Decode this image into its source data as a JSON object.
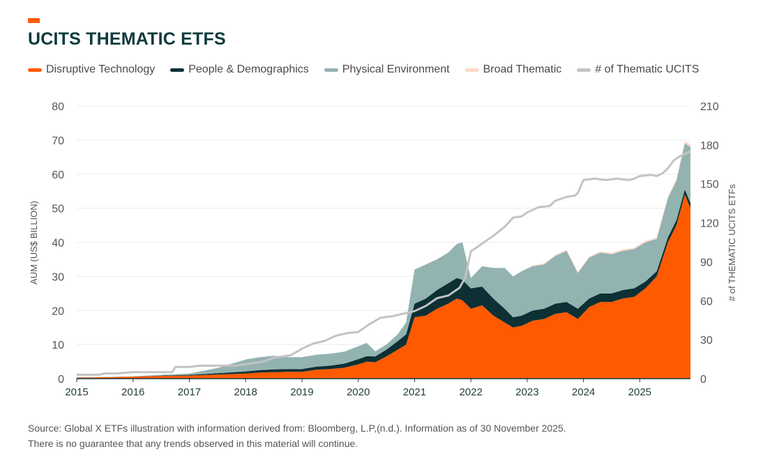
{
  "header": {
    "title": "UCITS THEMATIC ETFS"
  },
  "legend": [
    {
      "label": "Disruptive Technology",
      "color": "#ff5a00"
    },
    {
      "label": "People & Demographics",
      "color": "#0d3035"
    },
    {
      "label": "Physical Environment",
      "color": "#93b3b1"
    },
    {
      "label": "Broad Thematic",
      "color": "#fdd9c6"
    },
    {
      "label": "# of Thematic UCITS",
      "color": "#c3c3c3"
    }
  ],
  "footer": {
    "source": "Source: Global X ETFs illustration with information derived from: Bloomberg, L.P,(n.d.). Information as of 30 November 2025.",
    "disclaimer": "There is no guarantee that any trends observed in this material will continue."
  },
  "chart_data": {
    "type": "area",
    "title": "UCITS THEMATIC ETFS",
    "ylabel": "AUM (US$ BILLION)",
    "y2label": "# of THEMATIC UCITS ETFs",
    "ylim": [
      0,
      80
    ],
    "y2lim": [
      0,
      210
    ],
    "yticks": [
      0,
      10,
      20,
      30,
      40,
      50,
      60,
      70,
      80
    ],
    "y2ticks": [
      0,
      30,
      60,
      90,
      120,
      150,
      180,
      210
    ],
    "xlim": [
      2015,
      2025.9
    ],
    "xticks": [
      "2015",
      "2016",
      "2017",
      "2018",
      "2019",
      "2020",
      "2021",
      "2022",
      "2023",
      "2024",
      "2025"
    ],
    "grid": "horizontal",
    "legend_position": "top",
    "stacked": true,
    "x": [
      2015.0,
      2015.5,
      2016.0,
      2016.5,
      2017.0,
      2017.5,
      2018.0,
      2018.25,
      2018.5,
      2018.75,
      2019.0,
      2019.25,
      2019.5,
      2019.75,
      2020.0,
      2020.15,
      2020.3,
      2020.5,
      2020.7,
      2020.85,
      2021.0,
      2021.2,
      2021.4,
      2021.6,
      2021.75,
      2021.85,
      2022.0,
      2022.2,
      2022.4,
      2022.6,
      2022.75,
      2022.9,
      2023.1,
      2023.3,
      2023.5,
      2023.7,
      2023.9,
      2024.1,
      2024.3,
      2024.5,
      2024.7,
      2024.9,
      2025.1,
      2025.3,
      2025.5,
      2025.65,
      2025.8,
      2025.9
    ],
    "series": [
      {
        "name": "Disruptive Technology",
        "color": "#ff5a00",
        "values": [
          0.3,
          0.4,
          0.6,
          0.8,
          0.9,
          1.2,
          1.5,
          1.8,
          1.9,
          2.0,
          2.0,
          2.6,
          2.8,
          3.2,
          4.2,
          5.0,
          4.8,
          6.5,
          8.5,
          10.0,
          18.0,
          18.5,
          20.5,
          22.0,
          23.5,
          23.0,
          20.5,
          21.5,
          18.5,
          16.5,
          15.0,
          15.5,
          17.0,
          17.5,
          19.0,
          19.5,
          17.5,
          21.0,
          22.5,
          22.5,
          23.5,
          24.0,
          26.5,
          30.0,
          40.0,
          45.0,
          54.0,
          50.0
        ]
      },
      {
        "name": "People & Demographics",
        "color": "#0d3035",
        "values": [
          0.0,
          0.0,
          0.0,
          0.1,
          0.2,
          0.4,
          0.6,
          0.7,
          0.8,
          0.8,
          0.8,
          0.9,
          1.0,
          1.2,
          1.5,
          1.6,
          1.7,
          2.0,
          2.5,
          3.0,
          4.0,
          5.0,
          5.5,
          6.0,
          6.0,
          6.0,
          6.0,
          5.5,
          5.0,
          4.0,
          3.0,
          3.0,
          3.0,
          3.0,
          3.0,
          3.0,
          3.0,
          2.5,
          2.5,
          2.5,
          2.5,
          2.5,
          2.0,
          1.5,
          1.5,
          1.5,
          1.5,
          1.5
        ]
      },
      {
        "name": "Physical Environment",
        "color": "#93b3b1",
        "values": [
          0.1,
          0.1,
          0.1,
          0.2,
          0.4,
          1.5,
          3.5,
          3.8,
          4.0,
          3.5,
          3.5,
          3.5,
          3.5,
          3.5,
          3.8,
          3.9,
          1.5,
          1.5,
          2.0,
          3.5,
          10.0,
          10.0,
          9.0,
          9.0,
          10.0,
          11.0,
          3.0,
          6.0,
          9.0,
          12.0,
          12.0,
          13.0,
          13.0,
          13.0,
          14.0,
          15.0,
          10.5,
          12.0,
          12.0,
          11.5,
          11.5,
          11.5,
          11.5,
          9.5,
          11.5,
          11.5,
          13.5,
          16.5
        ]
      },
      {
        "name": "Broad Thematic",
        "color": "#fdd9c6",
        "values": [
          0,
          0,
          0,
          0,
          0,
          0,
          0,
          0,
          0,
          0,
          0,
          0,
          0,
          0,
          0,
          0,
          0,
          0,
          0,
          0,
          0,
          0,
          0,
          0,
          0,
          0,
          0,
          0,
          0,
          0,
          0,
          0,
          0.3,
          0.3,
          0.3,
          0.3,
          0.3,
          0.3,
          0.3,
          0.4,
          0.4,
          0.4,
          0.4,
          0.4,
          0.5,
          0.6,
          0.7,
          0.7
        ]
      }
    ],
    "count_series": {
      "name": "# of Thematic UCITS",
      "color": "#c3c3c3",
      "axis": "right",
      "x": [
        2015.0,
        2015.4,
        2015.5,
        2015.7,
        2016.0,
        2016.5,
        2016.7,
        2016.75,
        2017.0,
        2017.2,
        2017.5,
        2017.8,
        2018.0,
        2018.3,
        2018.5,
        2018.8,
        2019.0,
        2019.2,
        2019.4,
        2019.6,
        2019.8,
        2020.0,
        2020.2,
        2020.4,
        2020.6,
        2020.8,
        2021.0,
        2021.2,
        2021.4,
        2021.6,
        2021.8,
        2021.9,
        2022.0,
        2022.2,
        2022.4,
        2022.6,
        2022.75,
        2022.9,
        2023.0,
        2023.2,
        2023.4,
        2023.5,
        2023.7,
        2023.85,
        2023.9,
        2024.0,
        2024.2,
        2024.4,
        2024.6,
        2024.8,
        2024.9,
        2025.0,
        2025.2,
        2025.3,
        2025.4,
        2025.5,
        2025.6,
        2025.7,
        2025.8,
        2025.9
      ],
      "values": [
        3,
        3,
        4,
        4,
        5,
        5,
        5,
        9,
        9,
        10,
        10,
        10,
        11,
        13,
        16,
        18,
        23,
        27,
        29,
        33,
        35,
        36,
        42,
        47,
        48,
        50,
        52,
        56,
        62,
        64,
        70,
        78,
        98,
        104,
        110,
        117,
        124,
        125,
        128,
        132,
        133,
        137,
        140,
        141,
        143,
        153,
        154,
        153,
        154,
        153,
        154,
        156,
        157,
        156,
        158,
        162,
        168,
        171,
        173,
        175
      ]
    }
  }
}
